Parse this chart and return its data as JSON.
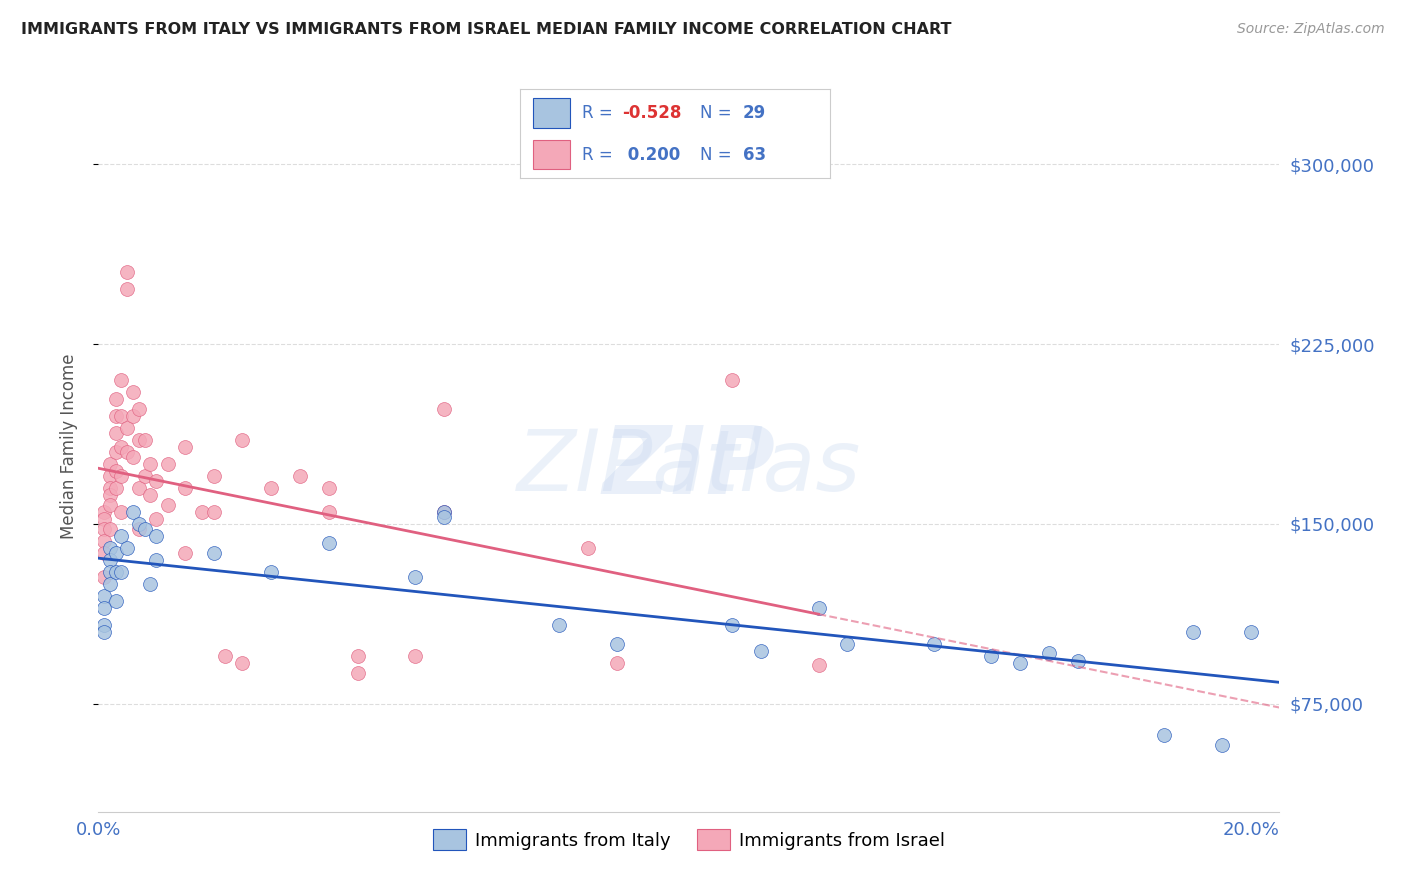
{
  "title": "IMMIGRANTS FROM ITALY VS IMMIGRANTS FROM ISRAEL MEDIAN FAMILY INCOME CORRELATION CHART",
  "source": "Source: ZipAtlas.com",
  "ylabel": "Median Family Income",
  "yticks": [
    75000,
    150000,
    225000,
    300000
  ],
  "ytick_labels": [
    "$75,000",
    "$150,000",
    "$225,000",
    "$300,000"
  ],
  "xlim": [
    0.0,
    0.205
  ],
  "ylim": [
    30000,
    335000
  ],
  "watermark": "ZIPatlas",
  "italy_color": "#a8c4e0",
  "israel_color": "#f4a8b8",
  "italy_line_color": "#2255bb",
  "israel_line_color": "#e06080",
  "italy_scatter": [
    [
      0.001,
      120000
    ],
    [
      0.001,
      115000
    ],
    [
      0.001,
      108000
    ],
    [
      0.001,
      105000
    ],
    [
      0.002,
      140000
    ],
    [
      0.002,
      135000
    ],
    [
      0.002,
      130000
    ],
    [
      0.002,
      125000
    ],
    [
      0.003,
      138000
    ],
    [
      0.003,
      130000
    ],
    [
      0.003,
      118000
    ],
    [
      0.004,
      145000
    ],
    [
      0.004,
      130000
    ],
    [
      0.005,
      140000
    ],
    [
      0.006,
      155000
    ],
    [
      0.007,
      150000
    ],
    [
      0.008,
      148000
    ],
    [
      0.009,
      125000
    ],
    [
      0.01,
      145000
    ],
    [
      0.01,
      135000
    ],
    [
      0.02,
      138000
    ],
    [
      0.03,
      130000
    ],
    [
      0.04,
      142000
    ],
    [
      0.055,
      128000
    ],
    [
      0.06,
      155000
    ],
    [
      0.06,
      153000
    ],
    [
      0.08,
      108000
    ],
    [
      0.09,
      100000
    ],
    [
      0.11,
      108000
    ],
    [
      0.115,
      97000
    ],
    [
      0.125,
      115000
    ],
    [
      0.13,
      100000
    ],
    [
      0.145,
      100000
    ],
    [
      0.155,
      95000
    ],
    [
      0.16,
      92000
    ],
    [
      0.165,
      96000
    ],
    [
      0.17,
      93000
    ],
    [
      0.185,
      62000
    ],
    [
      0.19,
      105000
    ],
    [
      0.195,
      58000
    ],
    [
      0.2,
      105000
    ]
  ],
  "israel_scatter": [
    [
      0.001,
      155000
    ],
    [
      0.001,
      152000
    ],
    [
      0.001,
      148000
    ],
    [
      0.001,
      143000
    ],
    [
      0.001,
      138000
    ],
    [
      0.001,
      128000
    ],
    [
      0.002,
      175000
    ],
    [
      0.002,
      170000
    ],
    [
      0.002,
      165000
    ],
    [
      0.002,
      162000
    ],
    [
      0.002,
      158000
    ],
    [
      0.002,
      148000
    ],
    [
      0.003,
      202000
    ],
    [
      0.003,
      195000
    ],
    [
      0.003,
      188000
    ],
    [
      0.003,
      180000
    ],
    [
      0.003,
      172000
    ],
    [
      0.003,
      165000
    ],
    [
      0.004,
      210000
    ],
    [
      0.004,
      195000
    ],
    [
      0.004,
      182000
    ],
    [
      0.004,
      170000
    ],
    [
      0.004,
      155000
    ],
    [
      0.005,
      255000
    ],
    [
      0.005,
      248000
    ],
    [
      0.005,
      190000
    ],
    [
      0.005,
      180000
    ],
    [
      0.006,
      205000
    ],
    [
      0.006,
      195000
    ],
    [
      0.006,
      178000
    ],
    [
      0.007,
      198000
    ],
    [
      0.007,
      185000
    ],
    [
      0.007,
      165000
    ],
    [
      0.007,
      148000
    ],
    [
      0.008,
      185000
    ],
    [
      0.008,
      170000
    ],
    [
      0.009,
      175000
    ],
    [
      0.009,
      162000
    ],
    [
      0.01,
      168000
    ],
    [
      0.01,
      152000
    ],
    [
      0.012,
      175000
    ],
    [
      0.012,
      158000
    ],
    [
      0.015,
      182000
    ],
    [
      0.015,
      165000
    ],
    [
      0.015,
      138000
    ],
    [
      0.018,
      155000
    ],
    [
      0.02,
      170000
    ],
    [
      0.02,
      155000
    ],
    [
      0.022,
      95000
    ],
    [
      0.025,
      185000
    ],
    [
      0.025,
      92000
    ],
    [
      0.03,
      165000
    ],
    [
      0.035,
      170000
    ],
    [
      0.04,
      165000
    ],
    [
      0.04,
      155000
    ],
    [
      0.045,
      95000
    ],
    [
      0.045,
      88000
    ],
    [
      0.055,
      95000
    ],
    [
      0.06,
      198000
    ],
    [
      0.06,
      155000
    ],
    [
      0.085,
      140000
    ],
    [
      0.09,
      92000
    ],
    [
      0.11,
      210000
    ],
    [
      0.125,
      91000
    ]
  ],
  "background_color": "#ffffff",
  "grid_color": "#dddddd",
  "title_color": "#222222",
  "axis_label_color": "#555555",
  "tick_color": "#4472c4"
}
